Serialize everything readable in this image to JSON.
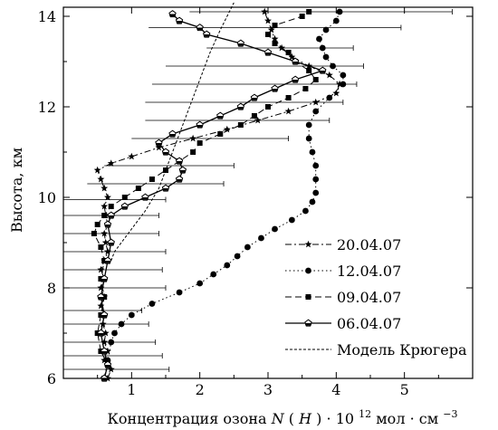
{
  "chart_data": {
    "type": "line",
    "xlabel_parts": {
      "prefix": "Концентрация озона ",
      "n_symbol": "N",
      "h_symbol": "H",
      "times": " · 10",
      "exp": "12",
      "unit_mid": " мол · см",
      "unit_exp": "−3"
    },
    "ylabel": "Высота, км",
    "xlim": [
      0,
      6
    ],
    "ylim": [
      6,
      14.2
    ],
    "x_ticks": [
      1,
      2,
      3,
      4,
      5
    ],
    "y_ticks": [
      6,
      8,
      10,
      12,
      14
    ],
    "grid": false,
    "legend_position": "bottom-right",
    "series": [
      {
        "name": "20.04.07",
        "line_style": "dash-dot",
        "marker": "star",
        "points": [
          [
            0.65,
            6.0
          ],
          [
            0.7,
            6.2
          ],
          [
            0.6,
            6.4
          ],
          [
            0.65,
            6.6
          ],
          [
            0.6,
            6.8
          ],
          [
            0.62,
            7.0
          ],
          [
            0.58,
            7.2
          ],
          [
            0.6,
            7.4
          ],
          [
            0.55,
            7.6
          ],
          [
            0.6,
            7.8
          ],
          [
            0.55,
            8.0
          ],
          [
            0.6,
            8.2
          ],
          [
            0.55,
            8.4
          ],
          [
            0.6,
            8.6
          ],
          [
            0.65,
            8.8
          ],
          [
            0.62,
            9.0
          ],
          [
            0.6,
            9.2
          ],
          [
            0.65,
            9.4
          ],
          [
            0.62,
            9.6
          ],
          [
            0.6,
            9.8
          ],
          [
            0.65,
            10.0
          ],
          [
            0.6,
            10.2
          ],
          [
            0.55,
            10.4
          ],
          [
            0.5,
            10.6
          ],
          [
            0.7,
            10.75
          ],
          [
            1.0,
            10.9
          ],
          [
            1.4,
            11.1
          ],
          [
            1.9,
            11.3
          ],
          [
            2.4,
            11.5
          ],
          [
            2.85,
            11.7
          ],
          [
            3.3,
            11.9
          ],
          [
            3.7,
            12.1
          ],
          [
            4.0,
            12.3
          ],
          [
            4.05,
            12.5
          ],
          [
            3.9,
            12.7
          ],
          [
            3.6,
            12.9
          ],
          [
            3.35,
            13.1
          ],
          [
            3.2,
            13.3
          ],
          [
            3.1,
            13.5
          ],
          [
            3.05,
            13.7
          ],
          [
            3.0,
            13.9
          ],
          [
            2.95,
            14.1
          ]
        ]
      },
      {
        "name": "12.04.07",
        "line_style": "dotted",
        "marker": "circle",
        "points": [
          [
            0.6,
            6.0
          ],
          [
            0.65,
            6.4
          ],
          [
            0.7,
            6.8
          ],
          [
            0.75,
            7.0
          ],
          [
            0.85,
            7.2
          ],
          [
            1.0,
            7.4
          ],
          [
            1.3,
            7.65
          ],
          [
            1.7,
            7.9
          ],
          [
            2.0,
            8.1
          ],
          [
            2.2,
            8.3
          ],
          [
            2.4,
            8.5
          ],
          [
            2.55,
            8.7
          ],
          [
            2.7,
            8.9
          ],
          [
            2.9,
            9.1
          ],
          [
            3.1,
            9.3
          ],
          [
            3.35,
            9.5
          ],
          [
            3.55,
            9.7
          ],
          [
            3.65,
            9.9
          ],
          [
            3.7,
            10.1
          ],
          [
            3.7,
            10.4
          ],
          [
            3.7,
            10.7
          ],
          [
            3.65,
            11.0
          ],
          [
            3.6,
            11.3
          ],
          [
            3.6,
            11.6
          ],
          [
            3.7,
            11.9
          ],
          [
            3.9,
            12.2
          ],
          [
            4.1,
            12.5
          ],
          [
            4.1,
            12.7
          ],
          [
            3.95,
            12.9
          ],
          [
            3.85,
            13.1
          ],
          [
            3.8,
            13.3
          ],
          [
            3.75,
            13.5
          ],
          [
            3.85,
            13.7
          ],
          [
            4.0,
            13.9
          ],
          [
            4.05,
            14.1
          ]
        ]
      },
      {
        "name": "09.04.07",
        "line_style": "dashed",
        "marker": "square",
        "points": [
          [
            0.6,
            6.0
          ],
          [
            0.65,
            6.3
          ],
          [
            0.55,
            6.6
          ],
          [
            0.5,
            7.0
          ],
          [
            0.55,
            7.4
          ],
          [
            0.6,
            7.8
          ],
          [
            0.55,
            8.2
          ],
          [
            0.6,
            8.6
          ],
          [
            0.55,
            8.9
          ],
          [
            0.45,
            9.2
          ],
          [
            0.5,
            9.4
          ],
          [
            0.6,
            9.6
          ],
          [
            0.7,
            9.8
          ],
          [
            0.9,
            10.0
          ],
          [
            1.1,
            10.2
          ],
          [
            1.3,
            10.4
          ],
          [
            1.5,
            10.6
          ],
          [
            1.7,
            10.8
          ],
          [
            1.9,
            11.0
          ],
          [
            2.0,
            11.2
          ],
          [
            2.3,
            11.4
          ],
          [
            2.6,
            11.6
          ],
          [
            2.8,
            11.8
          ],
          [
            3.0,
            12.0
          ],
          [
            3.3,
            12.2
          ],
          [
            3.55,
            12.4
          ],
          [
            3.7,
            12.6
          ],
          [
            3.6,
            12.8
          ],
          [
            3.4,
            13.0
          ],
          [
            3.3,
            13.2
          ],
          [
            3.1,
            13.4
          ],
          [
            3.0,
            13.6
          ],
          [
            3.1,
            13.8
          ],
          [
            3.5,
            14.0
          ],
          [
            3.6,
            14.1
          ]
        ]
      },
      {
        "name": "06.04.07",
        "line_style": "solid",
        "marker": "pentagon",
        "points": [
          [
            0.6,
            6.0
          ],
          [
            0.65,
            6.3
          ],
          [
            0.6,
            6.6
          ],
          [
            0.55,
            7.0
          ],
          [
            0.6,
            7.4
          ],
          [
            0.55,
            7.8
          ],
          [
            0.6,
            8.2
          ],
          [
            0.65,
            8.6
          ],
          [
            0.7,
            9.0
          ],
          [
            0.65,
            9.4
          ],
          [
            0.7,
            9.6
          ],
          [
            0.9,
            9.8
          ],
          [
            1.2,
            10.0
          ],
          [
            1.5,
            10.2
          ],
          [
            1.7,
            10.4
          ],
          [
            1.75,
            10.6
          ],
          [
            1.7,
            10.8
          ],
          [
            1.5,
            11.0
          ],
          [
            1.4,
            11.2
          ],
          [
            1.6,
            11.4
          ],
          [
            2.0,
            11.6
          ],
          [
            2.3,
            11.8
          ],
          [
            2.6,
            12.0
          ],
          [
            2.8,
            12.2
          ],
          [
            3.1,
            12.4
          ],
          [
            3.4,
            12.6
          ],
          [
            3.8,
            12.8
          ],
          [
            3.4,
            13.0
          ],
          [
            3.0,
            13.2
          ],
          [
            2.6,
            13.4
          ],
          [
            2.1,
            13.6
          ],
          [
            2.0,
            13.75
          ],
          [
            1.7,
            13.9
          ],
          [
            1.6,
            14.05
          ]
        ]
      },
      {
        "name": "Модель Крюгера",
        "line_style": "short-dash",
        "marker": "none",
        "points": [
          [
            0.7,
            8.6
          ],
          [
            0.75,
            8.8
          ],
          [
            0.85,
            9.0
          ],
          [
            1.0,
            9.3
          ],
          [
            1.2,
            9.7
          ],
          [
            1.4,
            10.2
          ],
          [
            1.55,
            10.8
          ],
          [
            1.7,
            11.4
          ],
          [
            1.85,
            12.0
          ],
          [
            2.0,
            12.6
          ],
          [
            2.15,
            13.2
          ],
          [
            2.3,
            13.7
          ],
          [
            2.5,
            14.3
          ]
        ]
      }
    ],
    "error_bars": [
      [
        0.0,
        1.55,
        6.2
      ],
      [
        0.0,
        1.45,
        6.5
      ],
      [
        0.0,
        1.35,
        6.8
      ],
      [
        0.0,
        1.25,
        7.2
      ],
      [
        0.0,
        1.15,
        7.5
      ],
      [
        0.0,
        1.5,
        8.0
      ],
      [
        0.0,
        1.45,
        8.4
      ],
      [
        0.0,
        1.5,
        8.8
      ],
      [
        0.0,
        1.4,
        9.2
      ],
      [
        0.0,
        1.4,
        9.6
      ],
      [
        0.0,
        1.5,
        9.95
      ],
      [
        0.35,
        2.35,
        10.3
      ],
      [
        0.6,
        2.5,
        10.7
      ],
      [
        1.0,
        3.3,
        11.3
      ],
      [
        1.2,
        3.9,
        11.7
      ],
      [
        1.2,
        4.1,
        12.1
      ],
      [
        1.3,
        4.3,
        12.5
      ],
      [
        1.5,
        4.4,
        12.9
      ],
      [
        2.1,
        4.25,
        13.3
      ],
      [
        1.25,
        4.95,
        13.75
      ],
      [
        1.85,
        5.7,
        14.1
      ]
    ]
  },
  "legend": {
    "items": [
      {
        "label": "20.04.07"
      },
      {
        "label": "12.04.07"
      },
      {
        "label": "09.04.07"
      },
      {
        "label": "06.04.07"
      },
      {
        "label": "Модель Крюгера"
      }
    ]
  }
}
